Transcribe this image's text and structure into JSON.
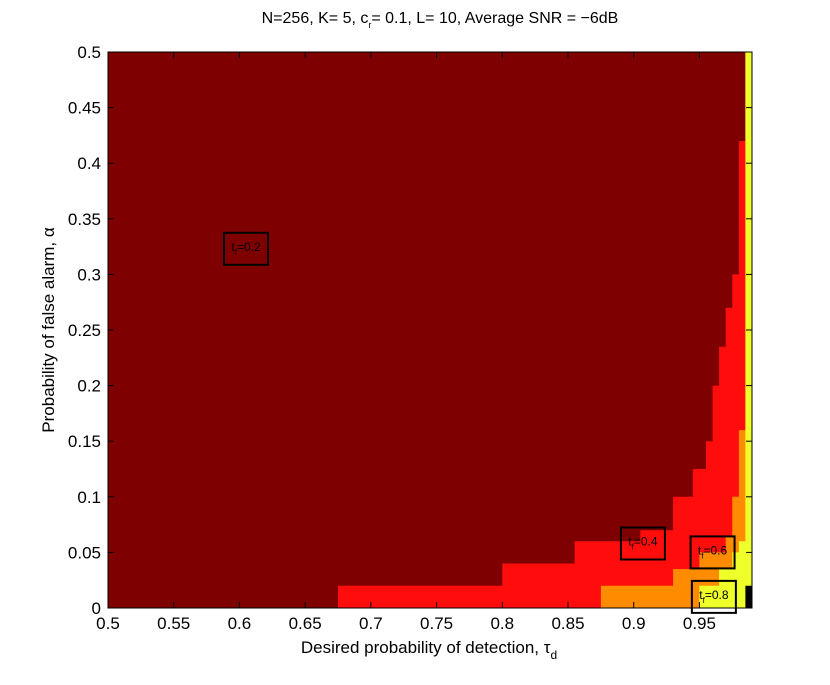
{
  "chart_data": {
    "type": "heatmap",
    "title": {
      "main": "N=256, K= 5, c",
      "sub": "r",
      "rest": "= 0.1, L= 10, Average SNR = −6dB"
    },
    "xlabel": {
      "main": "Desired probability of detection, τ",
      "sub": "d"
    },
    "ylabel": "Probability of false alarm, α",
    "xlim": [
      0.5,
      0.99
    ],
    "ylim": [
      0,
      0.5
    ],
    "xticks": [
      "0.5",
      "0.55",
      "0.6",
      "0.65",
      "0.7",
      "0.75",
      "0.8",
      "0.85",
      "0.9",
      "0.95"
    ],
    "yticks": [
      "0",
      "0.05",
      "0.1",
      "0.15",
      "0.2",
      "0.25",
      "0.3",
      "0.35",
      "0.4",
      "0.45",
      "0.5"
    ],
    "levels": [
      {
        "t": 0.2,
        "color": "#7f0000"
      },
      {
        "t": 0.4,
        "color": "#ff0d0d"
      },
      {
        "t": 0.6,
        "color": "#ff8c00"
      },
      {
        "t": 0.8,
        "color": "#eeff2a"
      },
      {
        "t": 1.0,
        "color": "#000000"
      }
    ],
    "boundaries": [
      {
        "name": "t=0.4 boundary",
        "points": [
          [
            0.675,
            0
          ],
          [
            0.675,
            0.02
          ],
          [
            0.8,
            0.02
          ],
          [
            0.8,
            0.04
          ],
          [
            0.855,
            0.04
          ],
          [
            0.855,
            0.06
          ],
          [
            0.905,
            0.06
          ],
          [
            0.905,
            0.07
          ],
          [
            0.93,
            0.07
          ],
          [
            0.93,
            0.1
          ],
          [
            0.945,
            0.1
          ],
          [
            0.945,
            0.125
          ],
          [
            0.955,
            0.125
          ],
          [
            0.955,
            0.15
          ],
          [
            0.96,
            0.15
          ],
          [
            0.96,
            0.2
          ],
          [
            0.965,
            0.2
          ],
          [
            0.965,
            0.235
          ],
          [
            0.97,
            0.235
          ],
          [
            0.97,
            0.27
          ],
          [
            0.975,
            0.27
          ],
          [
            0.975,
            0.3
          ],
          [
            0.98,
            0.3
          ],
          [
            0.98,
            0.42
          ],
          [
            0.985,
            0.42
          ],
          [
            0.985,
            0.5
          ]
        ]
      },
      {
        "name": "t=0.6 boundary",
        "points": [
          [
            0.875,
            0
          ],
          [
            0.875,
            0.02
          ],
          [
            0.93,
            0.02
          ],
          [
            0.93,
            0.035
          ],
          [
            0.95,
            0.035
          ],
          [
            0.95,
            0.05
          ],
          [
            0.97,
            0.05
          ],
          [
            0.97,
            0.065
          ],
          [
            0.975,
            0.065
          ],
          [
            0.975,
            0.1
          ],
          [
            0.98,
            0.1
          ],
          [
            0.98,
            0.16
          ],
          [
            0.985,
            0.16
          ],
          [
            0.985,
            0.5
          ]
        ]
      },
      {
        "name": "t=0.8 boundary",
        "points": [
          [
            0.95,
            0
          ],
          [
            0.95,
            0.02
          ],
          [
            0.965,
            0.02
          ],
          [
            0.965,
            0.035
          ],
          [
            0.975,
            0.035
          ],
          [
            0.975,
            0.05
          ],
          [
            0.98,
            0.05
          ],
          [
            0.98,
            0.06
          ],
          [
            0.985,
            0.06
          ],
          [
            0.985,
            0.5
          ]
        ]
      },
      {
        "name": "t=1 boundary",
        "points": [
          [
            0.985,
            0
          ],
          [
            0.985,
            0.02
          ],
          [
            0.99,
            0.02
          ],
          [
            0.99,
            0.5
          ]
        ]
      }
    ],
    "annotations": [
      {
        "main": "t",
        "sub": "f",
        "rest": "=0.2",
        "x": 0.605,
        "y": 0.323
      },
      {
        "main": "t",
        "sub": "f",
        "rest": "=0.4",
        "x": 0.907,
        "y": 0.058
      },
      {
        "main": "t",
        "sub": "f",
        "rest": "=0.6",
        "x": 0.96,
        "y": 0.05
      },
      {
        "main": "t",
        "sub": "f",
        "rest": "=0.8",
        "x": 0.961,
        "y": 0.01
      }
    ]
  }
}
